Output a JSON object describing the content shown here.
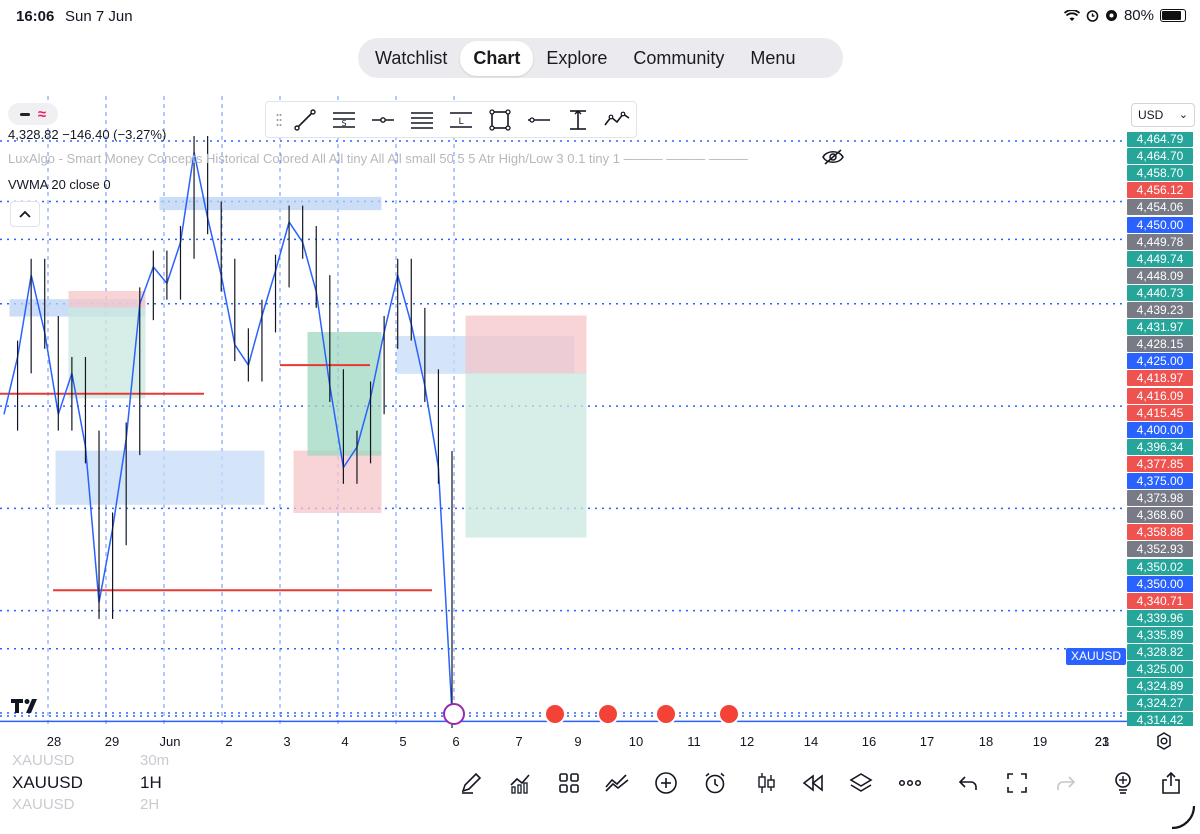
{
  "status": {
    "time": "16:06",
    "date": "Sun 7 Jun",
    "battery": "80%"
  },
  "nav": {
    "tabs": [
      {
        "label": "Watchlist",
        "active": false
      },
      {
        "label": "Chart",
        "active": true
      },
      {
        "label": "Explore",
        "active": false
      },
      {
        "label": "Community",
        "active": false
      },
      {
        "label": "Menu",
        "active": false
      }
    ]
  },
  "header": {
    "price_line": "4,328.82  −146.40 (−3.27%)",
    "indicator_lux": "LuxAlgo - Smart Money Concepts Historical Colored All All tiny All All small 50 5 5 Atr High/Low 3 0.1 tiny 1  ———  ———  ———",
    "indicator_vwma": "VWMA 20 close 0",
    "currency": "USD",
    "symbol_tag": "XAUUSD"
  },
  "toolbar_tools": [
    "drag-handle-icon",
    "trend-line-icon",
    "pitchfork-s-icon",
    "horizontal-ray-icon",
    "parallel-channel-icon",
    "regression-l-icon",
    "rectangle-icon",
    "horizontal-line-icon",
    "price-range-icon",
    "path-icon"
  ],
  "price_labels": [
    {
      "text": "4,464.79",
      "color": "#26a69a"
    },
    {
      "text": "4,464.70",
      "color": "#26a69a"
    },
    {
      "text": "4,458.70",
      "color": "#26a69a"
    },
    {
      "text": "4,456.12",
      "color": "#ef5350"
    },
    {
      "text": "4,454.06",
      "color": "#787b86"
    },
    {
      "text": "4,450.00",
      "color": "#2962ff"
    },
    {
      "text": "4,449.78",
      "color": "#787b86"
    },
    {
      "text": "4,449.74",
      "color": "#26a69a"
    },
    {
      "text": "4,448.09",
      "color": "#787b86"
    },
    {
      "text": "4,440.73",
      "color": "#26a69a"
    },
    {
      "text": "4,439.23",
      "color": "#787b86"
    },
    {
      "text": "4,431.97",
      "color": "#26a69a"
    },
    {
      "text": "4,428.15",
      "color": "#787b86"
    },
    {
      "text": "4,425.00",
      "color": "#2962ff"
    },
    {
      "text": "4,418.97",
      "color": "#ef5350"
    },
    {
      "text": "4,416.09",
      "color": "#ef5350"
    },
    {
      "text": "4,415.45",
      "color": "#ef5350"
    },
    {
      "text": "4,400.00",
      "color": "#2962ff"
    },
    {
      "text": "4,396.34",
      "color": "#26a69a"
    },
    {
      "text": "4,377.85",
      "color": "#ef5350"
    },
    {
      "text": "4,375.00",
      "color": "#2962ff"
    },
    {
      "text": "4,373.98",
      "color": "#787b86"
    },
    {
      "text": "4,368.60",
      "color": "#787b86"
    },
    {
      "text": "4,358.88",
      "color": "#ef5350"
    },
    {
      "text": "4,352.93",
      "color": "#787b86"
    },
    {
      "text": "4,350.02",
      "color": "#26a69a"
    },
    {
      "text": "4,350.00",
      "color": "#2962ff"
    },
    {
      "text": "4,340.71",
      "color": "#ef5350"
    },
    {
      "text": "4,339.96",
      "color": "#26a69a"
    },
    {
      "text": "4,335.89",
      "color": "#26a69a"
    },
    {
      "text": "4,328.82",
      "color": "#26a69a"
    },
    {
      "text": "4,325.00",
      "color": "#26a69a"
    },
    {
      "text": "4,324.89",
      "color": "#26a69a"
    },
    {
      "text": "4,324.27",
      "color": "#26a69a"
    },
    {
      "text": "4,314.42",
      "color": "#26a69a"
    }
  ],
  "time_labels": [
    "28",
    "29",
    "Jun",
    "2",
    "3",
    "4",
    "5",
    "6",
    "7",
    "9",
    "10",
    "11",
    "12",
    "14",
    "16",
    "17",
    "18",
    "19",
    "21",
    "23"
  ],
  "bottom": {
    "symbol": "XAUUSD",
    "timeframe": "1H",
    "ghost_symbol_above": "XAUUSD",
    "ghost_tf_above": "30m",
    "ghost_symbol_below": "XAUUSD",
    "ghost_tf_below": "2H",
    "tools": [
      "pencil-icon",
      "indicators-icon",
      "grid-icon",
      "compare-icon",
      "add-icon",
      "alert-clock-icon",
      "candles-icon",
      "replay-icon",
      "layers-icon",
      "more-icon",
      "undo-icon",
      "fullscreen-icon",
      "redo-icon",
      "idea-icon",
      "share-icon"
    ]
  },
  "chart_data": {
    "type": "candlestick",
    "symbol": "XAUUSD",
    "timeframe": "1H",
    "last": 4328.82,
    "change": -146.4,
    "change_pct": -3.27,
    "ylim": [
      4314,
      4466
    ],
    "x_categories": [
      "28",
      "29",
      "Jun",
      "2",
      "3",
      "4",
      "5",
      "6",
      "7"
    ],
    "close_path": [
      4398,
      4412,
      4432,
      4418,
      4398,
      4408,
      4390,
      4352,
      4370,
      4392,
      4425,
      4434,
      4430,
      4440,
      4462,
      4446,
      4432,
      4415,
      4410,
      4422,
      4433,
      4445,
      4440,
      4428,
      4405,
      4385,
      4390,
      4402,
      4418,
      4432,
      4420,
      4405,
      4385,
      4325
    ],
    "horizontal_levels": [
      4464.79,
      4450.0,
      4440.73,
      4425.0,
      4400.0,
      4375.0,
      4350.0,
      4340.71,
      4325.0,
      4324.27
    ]
  }
}
